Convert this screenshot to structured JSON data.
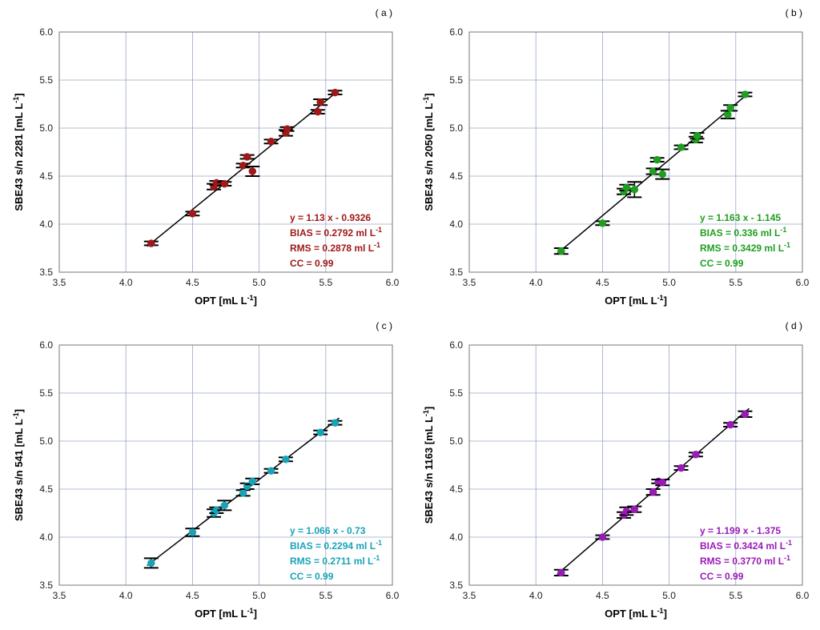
{
  "chart_data": [
    {
      "type": "scatter",
      "panel_label": "( a )",
      "xlabel": "OPT [mL L",
      "xlabel_sup": "-1",
      "ylabel": "SBE43 s/n 2281 [mL L",
      "ylabel_sup": "-1",
      "xlim": [
        3.5,
        6.0
      ],
      "ylim": [
        3.5,
        6.0
      ],
      "ticks": [
        "3.5",
        "4.0",
        "4.5",
        "5.0",
        "5.5",
        "6.0"
      ],
      "grid": true,
      "color": "#a01818",
      "fit": {
        "slope": 1.13,
        "intercept": -0.9326
      },
      "stats": [
        "y = 1.13 x - 0.9326",
        "BIAS = 0.2792 ml L",
        "RMS = 0.2878 ml L",
        "CC = 0.99"
      ],
      "stats_sup": [
        "",
        "-1",
        "-1",
        ""
      ],
      "points": [
        {
          "x": 4.19,
          "y": 3.8,
          "err": 0.02
        },
        {
          "x": 4.5,
          "y": 4.11,
          "err": 0.02
        },
        {
          "x": 4.66,
          "y": 4.39,
          "err": 0.03
        },
        {
          "x": 4.68,
          "y": 4.43,
          "err": 0.02
        },
        {
          "x": 4.74,
          "y": 4.42,
          "err": 0.02
        },
        {
          "x": 4.88,
          "y": 4.61,
          "err": 0.02
        },
        {
          "x": 4.91,
          "y": 4.7,
          "err": 0.02
        },
        {
          "x": 4.95,
          "y": 4.55,
          "err": 0.05
        },
        {
          "x": 5.09,
          "y": 4.86,
          "err": 0.02
        },
        {
          "x": 5.2,
          "y": 4.95,
          "err": 0.03
        },
        {
          "x": 5.21,
          "y": 4.99,
          "err": 0.02
        },
        {
          "x": 5.44,
          "y": 5.17,
          "err": 0.02
        },
        {
          "x": 5.46,
          "y": 5.27,
          "err": 0.03
        },
        {
          "x": 5.57,
          "y": 5.37,
          "err": 0.02
        }
      ]
    },
    {
      "type": "scatter",
      "panel_label": "( b )",
      "xlabel": "OPT [mL L",
      "xlabel_sup": "-1",
      "ylabel": "SBE43 s/n 2050 [mL L",
      "ylabel_sup": "-1",
      "xlim": [
        3.5,
        6.0
      ],
      "ylim": [
        3.5,
        6.0
      ],
      "ticks": [
        "3.5",
        "4.0",
        "4.5",
        "5.0",
        "5.5",
        "6.0"
      ],
      "grid": true,
      "color": "#1f9e1f",
      "fit": {
        "slope": 1.163,
        "intercept": -1.145
      },
      "stats": [
        "y = 1.163 x - 1.145",
        "BIAS = 0.336 ml L",
        "RMS = 0.3429 ml L",
        "CC = 0.99"
      ],
      "stats_sup": [
        "",
        "-1",
        "-1",
        ""
      ],
      "points": [
        {
          "x": 4.19,
          "y": 3.72,
          "err": 0.03
        },
        {
          "x": 4.5,
          "y": 4.01,
          "err": 0.02
        },
        {
          "x": 4.66,
          "y": 4.34,
          "err": 0.03
        },
        {
          "x": 4.68,
          "y": 4.38,
          "err": 0.03
        },
        {
          "x": 4.74,
          "y": 4.36,
          "err": 0.08
        },
        {
          "x": 4.88,
          "y": 4.55,
          "err": 0.03
        },
        {
          "x": 4.91,
          "y": 4.67,
          "err": 0.02
        },
        {
          "x": 4.95,
          "y": 4.52,
          "err": 0.05
        },
        {
          "x": 5.09,
          "y": 4.8,
          "err": 0.02
        },
        {
          "x": 5.2,
          "y": 4.88,
          "err": 0.03
        },
        {
          "x": 5.21,
          "y": 4.92,
          "err": 0.03
        },
        {
          "x": 5.44,
          "y": 5.14,
          "err": 0.04
        },
        {
          "x": 5.46,
          "y": 5.21,
          "err": 0.03
        },
        {
          "x": 5.57,
          "y": 5.35,
          "err": 0.02
        }
      ]
    },
    {
      "type": "scatter",
      "panel_label": "( c )",
      "xlabel": "OPT [mL L",
      "xlabel_sup": "-1",
      "ylabel": "SBE43 s/n 541 [mL L",
      "ylabel_sup": "-1",
      "xlim": [
        3.5,
        6.0
      ],
      "ylim": [
        3.5,
        6.0
      ],
      "ticks": [
        "3.5",
        "4.0",
        "4.5",
        "5.0",
        "5.5",
        "6.0"
      ],
      "grid": true,
      "color": "#1aa3b8",
      "fit": {
        "slope": 1.066,
        "intercept": -0.73
      },
      "stats": [
        "y = 1.066 x - 0.73",
        "BIAS = 0.2294 ml L",
        "RMS = 0.2711 ml L",
        "CC = 0.99"
      ],
      "stats_sup": [
        "",
        "-1",
        "-1",
        ""
      ],
      "points": [
        {
          "x": 4.19,
          "y": 3.73,
          "err": 0.05
        },
        {
          "x": 4.5,
          "y": 4.05,
          "err": 0.04
        },
        {
          "x": 4.66,
          "y": 4.25,
          "err": 0.04
        },
        {
          "x": 4.68,
          "y": 4.28,
          "err": 0.03
        },
        {
          "x": 4.74,
          "y": 4.33,
          "err": 0.05
        },
        {
          "x": 4.88,
          "y": 4.46,
          "err": 0.03
        },
        {
          "x": 4.91,
          "y": 4.53,
          "err": 0.03
        },
        {
          "x": 4.95,
          "y": 4.58,
          "err": 0.03
        },
        {
          "x": 5.09,
          "y": 4.69,
          "err": 0.02
        },
        {
          "x": 5.2,
          "y": 4.81,
          "err": 0.02
        },
        {
          "x": 5.46,
          "y": 5.09,
          "err": 0.02
        },
        {
          "x": 5.57,
          "y": 5.19,
          "err": 0.02
        }
      ]
    },
    {
      "type": "scatter",
      "panel_label": "( d )",
      "xlabel": "OPT [mL L",
      "xlabel_sup": "-1",
      "ylabel": "SBE43 s/n 1163 [mL L",
      "ylabel_sup": "-1",
      "xlim": [
        3.5,
        6.0
      ],
      "ylim": [
        3.5,
        6.0
      ],
      "ticks": [
        "3.5",
        "4.0",
        "4.5",
        "5.0",
        "5.5",
        "6.0"
      ],
      "grid": true,
      "color": "#9a1ab8",
      "fit": {
        "slope": 1.199,
        "intercept": -1.375
      },
      "stats": [
        "y = 1.199 x - 1.375",
        "BIAS = 0.3424 ml L",
        "RMS = 0.3770 ml L",
        "CC = 0.99"
      ],
      "stats_sup": [
        "",
        "-1",
        "-1",
        ""
      ],
      "points": [
        {
          "x": 4.19,
          "y": 3.63,
          "err": 0.03
        },
        {
          "x": 4.5,
          "y": 4.0,
          "err": 0.02
        },
        {
          "x": 4.66,
          "y": 4.23,
          "err": 0.03
        },
        {
          "x": 4.68,
          "y": 4.27,
          "err": 0.04
        },
        {
          "x": 4.74,
          "y": 4.29,
          "err": 0.03
        },
        {
          "x": 4.88,
          "y": 4.47,
          "err": 0.03
        },
        {
          "x": 4.92,
          "y": 4.58,
          "err": 0.02
        },
        {
          "x": 4.95,
          "y": 4.57,
          "err": 0.03
        },
        {
          "x": 5.09,
          "y": 4.72,
          "err": 0.02
        },
        {
          "x": 5.2,
          "y": 4.86,
          "err": 0.02
        },
        {
          "x": 5.46,
          "y": 5.17,
          "err": 0.02
        },
        {
          "x": 5.57,
          "y": 5.28,
          "err": 0.03
        }
      ]
    }
  ]
}
